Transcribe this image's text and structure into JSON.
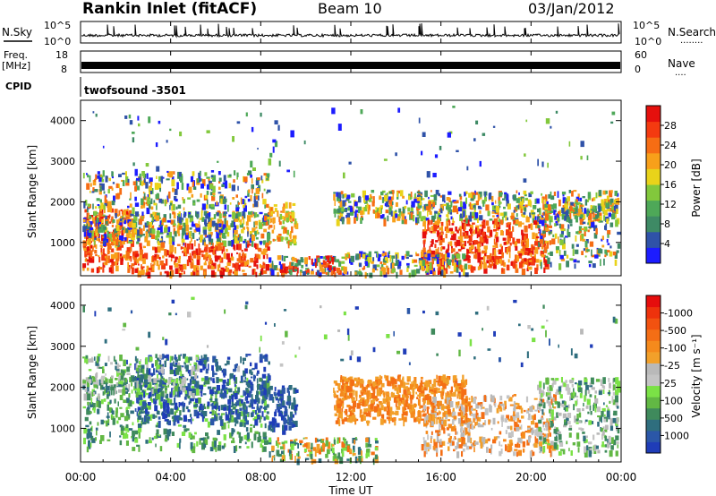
{
  "header": {
    "station": "Rankin Inlet (fitACF)",
    "beam": "Beam 10",
    "date": "03/Jan/2012"
  },
  "panels": {
    "nsky": {
      "left_label": "N.Sky",
      "right_label": "N.Search",
      "right_dots": "........",
      "tick_top": "10^5",
      "tick_bottom": "10^0"
    },
    "freq": {
      "left_label_1": "Freq.",
      "left_label_2": "[MHz]",
      "right_label": "Nave",
      "right_dots": "....",
      "left_ticks": [
        "18",
        "8"
      ],
      "right_ticks": [
        "60",
        "0"
      ]
    },
    "cpid": {
      "label": "CPID",
      "value": "twofsound -3501"
    }
  },
  "chart_data": [
    {
      "type": "heatmap",
      "title": "Power",
      "ylabel": "Slant Range [km]",
      "ylim": [
        180,
        4500
      ],
      "yticks": [
        "1000",
        "2000",
        "3000",
        "4000"
      ],
      "colorbar": {
        "label": "Power [dB]",
        "ticks": [
          "4",
          "8",
          "12",
          "16",
          "20",
          "24",
          "28"
        ],
        "colors": [
          "#1c1cff",
          "#2f52a8",
          "#3e8a65",
          "#4ea858",
          "#82c83c",
          "#e9d31a",
          "#f8a01a",
          "#f66d14",
          "#f43a10",
          "#e5100d"
        ]
      }
    },
    {
      "type": "heatmap",
      "title": "Velocity",
      "ylabel": "Slant Range [km]",
      "ylim": [
        180,
        4500
      ],
      "yticks": [
        "1000",
        "2000",
        "3000",
        "4000"
      ],
      "colorbar": {
        "label": "Velocity [m s⁻¹]",
        "ticks": [
          "1000",
          "500",
          "100",
          "25",
          "-25",
          "-100",
          "-500",
          "-1000"
        ],
        "colors": [
          "#1f3db8",
          "#2b57a8",
          "#2f6e7e",
          "#3f8a5c",
          "#62b844",
          "#7be246",
          "#c4c4c4",
          "#b9b9b9",
          "#f2a02a",
          "#f58a1c",
          "#f46e15",
          "#f25210",
          "#ee320c",
          "#e60d0d"
        ]
      }
    }
  ],
  "time_axis": {
    "label": "Time UT",
    "ticks": [
      "00:00",
      "04:00",
      "08:00",
      "12:00",
      "16:00",
      "20:00",
      "00:00"
    ]
  }
}
